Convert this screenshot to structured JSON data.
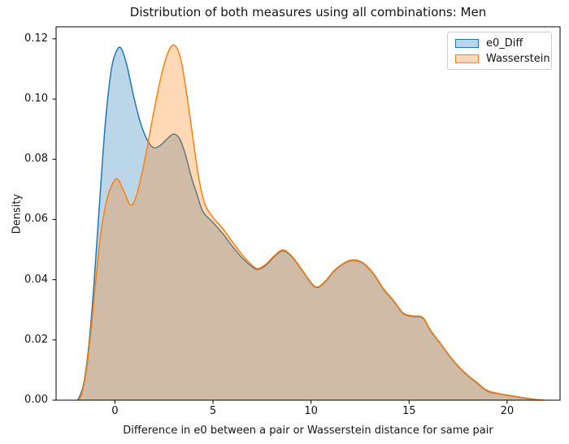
{
  "chart_data": {
    "type": "area",
    "kind": "kde-density",
    "title": "Distribution of both measures using all combinations: Men",
    "xlabel": "Difference in e0 between a pair or Wasserstein distance for same pair",
    "ylabel": "Density",
    "xlim": [
      -3.0,
      22.7
    ],
    "ylim": [
      0,
      0.124
    ],
    "grid": false,
    "xticks": {
      "values": [
        0,
        5,
        10,
        15,
        20
      ],
      "labels": [
        "0",
        "5",
        "10",
        "15",
        "20"
      ]
    },
    "yticks": {
      "values": [
        0,
        0.02,
        0.04,
        0.06,
        0.08,
        0.1,
        0.12
      ],
      "labels": [
        "0.00",
        "0.02",
        "0.04",
        "0.06",
        "0.08",
        "0.10",
        "0.12"
      ]
    },
    "legend": {
      "position": "upper right",
      "entries": [
        "e0_Diff",
        "Wasserstein"
      ]
    },
    "series": [
      {
        "name": "e0_Diff",
        "color": "#1f77b4",
        "fill_opacity": 0.3,
        "points": [
          [
            -1.9,
            0
          ],
          [
            -1.75,
            0.002
          ],
          [
            -1.55,
            0.007
          ],
          [
            -1.3,
            0.02
          ],
          [
            -1.05,
            0.04
          ],
          [
            -0.8,
            0.064
          ],
          [
            -0.5,
            0.091
          ],
          [
            -0.2,
            0.109
          ],
          [
            0.05,
            0.1155
          ],
          [
            0.3,
            0.117
          ],
          [
            0.6,
            0.1115
          ],
          [
            0.9,
            0.1025
          ],
          [
            1.2,
            0.0945
          ],
          [
            1.5,
            0.0885
          ],
          [
            1.8,
            0.0848
          ],
          [
            2.05,
            0.0838
          ],
          [
            2.35,
            0.0848
          ],
          [
            2.7,
            0.087
          ],
          [
            3.0,
            0.0884
          ],
          [
            3.3,
            0.0868
          ],
          [
            3.6,
            0.0815
          ],
          [
            3.9,
            0.074
          ],
          [
            4.2,
            0.068
          ],
          [
            4.5,
            0.0625
          ],
          [
            5.0,
            0.059
          ],
          [
            5.5,
            0.0553
          ],
          [
            6.0,
            0.051
          ],
          [
            6.5,
            0.0472
          ],
          [
            7.0,
            0.0443
          ],
          [
            7.3,
            0.0434
          ],
          [
            7.7,
            0.0448
          ],
          [
            8.1,
            0.0475
          ],
          [
            8.55,
            0.0496
          ],
          [
            9.0,
            0.0478
          ],
          [
            9.5,
            0.0435
          ],
          [
            10.2,
            0.0376
          ],
          [
            10.7,
            0.0392
          ],
          [
            11.2,
            0.043
          ],
          [
            11.8,
            0.0458
          ],
          [
            12.25,
            0.0464
          ],
          [
            12.7,
            0.0452
          ],
          [
            13.2,
            0.0418
          ],
          [
            13.7,
            0.0368
          ],
          [
            14.2,
            0.033
          ],
          [
            14.7,
            0.0288
          ],
          [
            15.2,
            0.0278
          ],
          [
            15.7,
            0.0273
          ],
          [
            16.1,
            0.023
          ],
          [
            16.6,
            0.0187
          ],
          [
            17.2,
            0.0135
          ],
          [
            17.8,
            0.0092
          ],
          [
            18.4,
            0.006
          ],
          [
            19.0,
            0.003
          ],
          [
            19.6,
            0.0021
          ],
          [
            20.2,
            0.0014
          ],
          [
            20.8,
            0.0008
          ],
          [
            21.3,
            0.0003
          ],
          [
            21.6,
            0
          ]
        ]
      },
      {
        "name": "Wasserstein",
        "color": "#ff7f0e",
        "fill_opacity": 0.3,
        "points": [
          [
            -1.85,
            0
          ],
          [
            -1.7,
            0.002
          ],
          [
            -1.5,
            0.008
          ],
          [
            -1.25,
            0.021
          ],
          [
            -1.0,
            0.038
          ],
          [
            -0.75,
            0.054
          ],
          [
            -0.5,
            0.064
          ],
          [
            -0.25,
            0.07
          ],
          [
            0.1,
            0.0735
          ],
          [
            0.45,
            0.0695
          ],
          [
            0.8,
            0.0648
          ],
          [
            1.1,
            0.068
          ],
          [
            1.5,
            0.079
          ],
          [
            1.9,
            0.093
          ],
          [
            2.3,
            0.106
          ],
          [
            2.65,
            0.1145
          ],
          [
            3.0,
            0.118
          ],
          [
            3.35,
            0.1135
          ],
          [
            3.7,
            0.1
          ],
          [
            4.0,
            0.086
          ],
          [
            4.3,
            0.073
          ],
          [
            4.6,
            0.065
          ],
          [
            5.0,
            0.0607
          ],
          [
            5.5,
            0.057
          ],
          [
            6.0,
            0.0525
          ],
          [
            6.5,
            0.0482
          ],
          [
            7.0,
            0.0448
          ],
          [
            7.3,
            0.0437
          ],
          [
            7.7,
            0.0452
          ],
          [
            8.1,
            0.0478
          ],
          [
            8.55,
            0.0499
          ],
          [
            9.0,
            0.048
          ],
          [
            9.5,
            0.0437
          ],
          [
            10.2,
            0.0378
          ],
          [
            10.7,
            0.0394
          ],
          [
            11.2,
            0.0432
          ],
          [
            11.8,
            0.046
          ],
          [
            12.25,
            0.0466
          ],
          [
            12.7,
            0.0454
          ],
          [
            13.2,
            0.042
          ],
          [
            13.7,
            0.037
          ],
          [
            14.2,
            0.0332
          ],
          [
            14.7,
            0.029
          ],
          [
            15.2,
            0.028
          ],
          [
            15.7,
            0.0275
          ],
          [
            16.1,
            0.0232
          ],
          [
            16.6,
            0.0189
          ],
          [
            17.2,
            0.0137
          ],
          [
            17.8,
            0.0094
          ],
          [
            18.4,
            0.0062
          ],
          [
            19.0,
            0.0032
          ],
          [
            19.6,
            0.0022
          ],
          [
            20.2,
            0.0015
          ],
          [
            20.8,
            0.0009
          ],
          [
            21.4,
            0.0003
          ],
          [
            21.9,
            0
          ]
        ]
      }
    ]
  }
}
